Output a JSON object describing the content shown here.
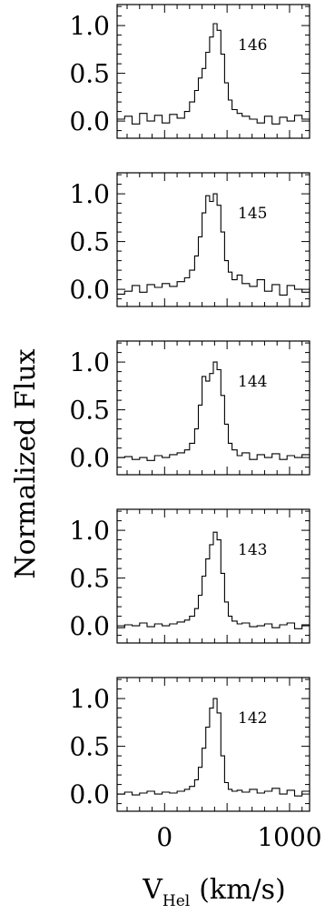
{
  "chart_data": {
    "type": "line",
    "ylabel": "Normalized Flux",
    "xlabel_main": "V",
    "xlabel_sub": "Hel",
    "xlabel_units": "(km/s)",
    "xlim": [
      -380,
      1160
    ],
    "ylim": [
      -0.18,
      1.22
    ],
    "x_ticklabels": [
      {
        "value": 0,
        "label": "0"
      },
      {
        "value": 1000,
        "label": "1000"
      }
    ],
    "y_ticklabels": [
      {
        "value": 1.0,
        "label": "1.0"
      },
      {
        "value": 0.5,
        "label": "0.5"
      },
      {
        "value": 0.0,
        "label": "0.0"
      }
    ],
    "panels": [
      {
        "label": "146",
        "x": [
          -380,
          -320,
          -260,
          -200,
          -140,
          -80,
          -20,
          40,
          100,
          160,
          200,
          240,
          270,
          300,
          330,
          360,
          390,
          420,
          450,
          480,
          510,
          540,
          580,
          620,
          680,
          740,
          800,
          860,
          920,
          980,
          1040,
          1100,
          1160
        ],
        "y": [
          0.02,
          0.05,
          -0.03,
          0.08,
          0.0,
          0.06,
          -0.02,
          0.07,
          0.03,
          0.1,
          0.2,
          0.32,
          0.45,
          0.55,
          0.72,
          0.88,
          1.02,
          0.95,
          0.7,
          0.4,
          0.22,
          0.12,
          0.08,
          0.05,
          0.02,
          -0.02,
          0.05,
          -0.03,
          0.04,
          0.0,
          0.06,
          0.02,
          0.03
        ]
      },
      {
        "label": "145",
        "x": [
          -380,
          -320,
          -260,
          -200,
          -140,
          -80,
          -20,
          40,
          100,
          160,
          200,
          240,
          270,
          300,
          330,
          360,
          390,
          420,
          450,
          480,
          510,
          540,
          580,
          620,
          680,
          740,
          800,
          860,
          920,
          980,
          1040,
          1100,
          1160
        ],
        "y": [
          -0.05,
          -0.02,
          0.04,
          -0.03,
          0.05,
          0.02,
          0.06,
          0.03,
          0.08,
          0.12,
          0.2,
          0.35,
          0.55,
          0.8,
          0.98,
          0.92,
          1.0,
          0.88,
          0.6,
          0.3,
          0.18,
          0.1,
          0.15,
          0.06,
          0.03,
          0.1,
          -0.02,
          0.05,
          -0.06,
          0.04,
          0.0,
          -0.03,
          0.02
        ]
      },
      {
        "label": "144",
        "x": [
          -380,
          -320,
          -260,
          -200,
          -140,
          -80,
          -20,
          40,
          100,
          160,
          200,
          240,
          270,
          300,
          330,
          360,
          390,
          420,
          450,
          480,
          510,
          540,
          580,
          620,
          680,
          740,
          800,
          860,
          920,
          980,
          1040,
          1100,
          1160
        ],
        "y": [
          0.0,
          0.01,
          -0.02,
          0.0,
          -0.03,
          0.02,
          0.0,
          0.03,
          0.05,
          0.08,
          0.15,
          0.3,
          0.55,
          0.85,
          0.8,
          0.88,
          1.0,
          0.92,
          0.65,
          0.35,
          0.15,
          0.08,
          0.02,
          0.05,
          -0.02,
          0.03,
          0.0,
          0.04,
          -0.02,
          0.02,
          0.0,
          0.03,
          0.01
        ]
      },
      {
        "label": "143",
        "x": [
          -380,
          -320,
          -260,
          -200,
          -140,
          -80,
          -20,
          40,
          100,
          160,
          200,
          240,
          270,
          300,
          330,
          360,
          390,
          420,
          450,
          480,
          510,
          540,
          580,
          620,
          680,
          740,
          800,
          860,
          920,
          980,
          1040,
          1100,
          1160
        ],
        "y": [
          -0.02,
          0.01,
          0.0,
          0.03,
          -0.01,
          0.02,
          0.0,
          0.02,
          0.04,
          0.06,
          0.1,
          0.18,
          0.32,
          0.52,
          0.7,
          0.85,
          0.98,
          0.9,
          0.55,
          0.25,
          0.1,
          0.05,
          0.02,
          0.03,
          -0.01,
          0.0,
          0.02,
          -0.02,
          0.01,
          0.03,
          -0.03,
          0.01,
          0.0
        ]
      },
      {
        "label": "142",
        "x": [
          -380,
          -320,
          -260,
          -200,
          -140,
          -80,
          -20,
          40,
          100,
          160,
          200,
          240,
          270,
          300,
          330,
          360,
          390,
          420,
          450,
          480,
          510,
          540,
          580,
          620,
          680,
          740,
          800,
          860,
          920,
          980,
          1040,
          1100,
          1160
        ],
        "y": [
          0.0,
          0.02,
          -0.01,
          0.01,
          0.03,
          0.0,
          0.02,
          0.01,
          0.03,
          0.05,
          0.08,
          0.15,
          0.28,
          0.48,
          0.7,
          0.9,
          1.0,
          0.85,
          0.4,
          0.12,
          0.05,
          0.03,
          0.04,
          0.02,
          0.05,
          0.01,
          0.03,
          0.06,
          0.0,
          0.04,
          -0.02,
          0.03,
          0.01
        ]
      }
    ]
  }
}
